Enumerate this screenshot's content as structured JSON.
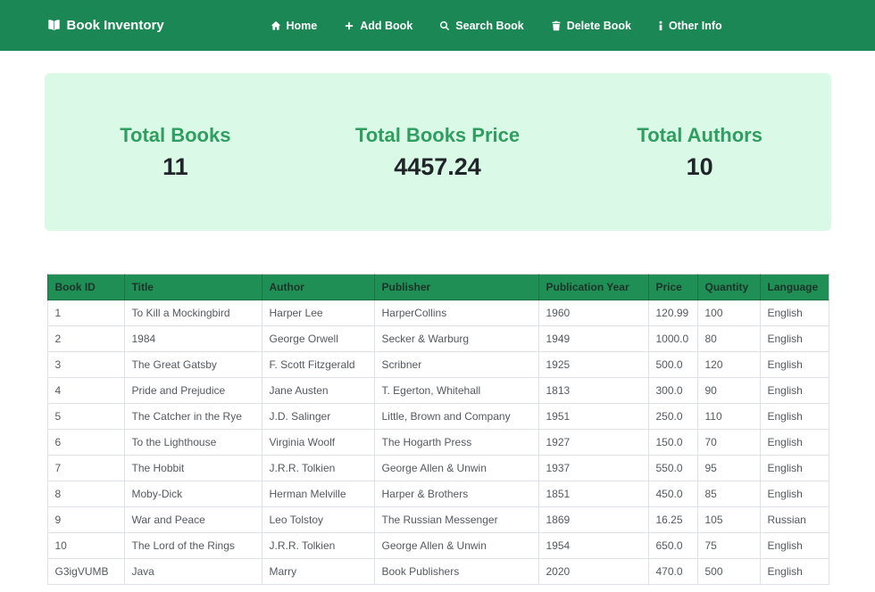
{
  "navbar": {
    "brand": "Book Inventory",
    "brand_icon": "book-icon",
    "items": [
      {
        "label": "Home",
        "icon": "home-icon"
      },
      {
        "label": "Add Book",
        "icon": "plus-icon"
      },
      {
        "label": "Search Book",
        "icon": "search-icon"
      },
      {
        "label": "Delete Book",
        "icon": "trash-icon"
      },
      {
        "label": "Other Info",
        "icon": "info-icon"
      }
    ]
  },
  "stats": {
    "cards": [
      {
        "label": "Total Books",
        "value": "11"
      },
      {
        "label": "Total Books Price",
        "value": "4457.24"
      },
      {
        "label": "Total Authors",
        "value": "10"
      }
    ]
  },
  "table": {
    "columns": [
      "Book ID",
      "Title",
      "Author",
      "Publisher",
      "Publication Year",
      "Price",
      "Quantity",
      "Language"
    ],
    "rows": [
      [
        "1",
        "To Kill a Mockingbird",
        "Harper Lee",
        "HarperCollins",
        "1960",
        "120.99",
        "100",
        "English"
      ],
      [
        "2",
        "1984",
        "George Orwell",
        "Secker & Warburg",
        "1949",
        "1000.0",
        "80",
        "English"
      ],
      [
        "3",
        "The Great Gatsby",
        "F. Scott Fitzgerald",
        "Scribner",
        "1925",
        "500.0",
        "120",
        "English"
      ],
      [
        "4",
        "Pride and Prejudice",
        "Jane Austen",
        "T. Egerton, Whitehall",
        "1813",
        "300.0",
        "90",
        "English"
      ],
      [
        "5",
        "The Catcher in the Rye",
        "J.D. Salinger",
        "Little, Brown and Company",
        "1951",
        "250.0",
        "110",
        "English"
      ],
      [
        "6",
        "To the Lighthouse",
        "Virginia Woolf",
        "The Hogarth Press",
        "1927",
        "150.0",
        "70",
        "English"
      ],
      [
        "7",
        "The Hobbit",
        "J.R.R. Tolkien",
        "George Allen & Unwin",
        "1937",
        "550.0",
        "95",
        "English"
      ],
      [
        "8",
        "Moby-Dick",
        "Herman Melville",
        "Harper & Brothers",
        "1851",
        "450.0",
        "85",
        "English"
      ],
      [
        "9",
        "War and Peace",
        "Leo Tolstoy",
        "The Russian Messenger",
        "1869",
        "16.25",
        "105",
        "Russian"
      ],
      [
        "10",
        "The Lord of the Rings",
        "J.R.R. Tolkien",
        "George Allen & Unwin",
        "1954",
        "650.0",
        "75",
        "English"
      ],
      [
        "G3igVUMB",
        "Java",
        "Marry",
        "Book Publishers",
        "2020",
        "470.0",
        "500",
        "English"
      ]
    ]
  },
  "colors": {
    "navbar_green": "#1b8755",
    "table_header_green": "#1f8f55",
    "stats_panel_mint": "#dafae7",
    "accent_green": "#2f9e60"
  }
}
